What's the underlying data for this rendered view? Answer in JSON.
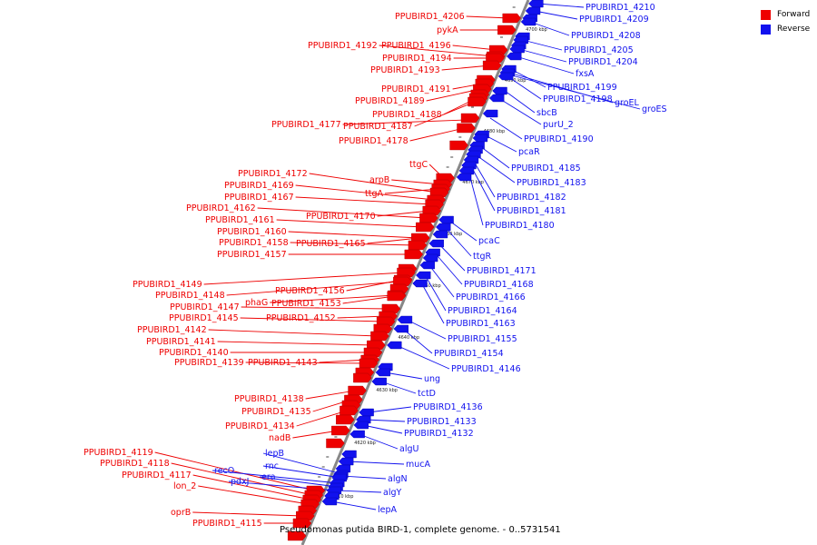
{
  "legend": {
    "forward_label": "Forward",
    "reverse_label": "Reverse",
    "forward_color": "#ee0000",
    "reverse_color": "#1111ee"
  },
  "colors": {
    "axis": "#888888",
    "forward": "#ee0000",
    "reverse": "#1111ee",
    "kbp_text": "#222222"
  },
  "caption": "Pseudomonas putida BIRD-1, complete genome. - 0..5731541",
  "kbp_ticks": [
    "4700 kbp",
    "4690 kbp",
    "4680 kbp",
    "4670 kbp",
    "4660 kbp",
    "4650 kbp",
    "4640 kbp",
    "4630 kbp",
    "4620 kbp",
    "4610 kbp"
  ],
  "forward_labels": [
    "PPUBIRD1_4206",
    "pykA",
    "PPUBIRD1_4192",
    "PPUBIRD1_4196",
    "PPUBIRD1_4194",
    "PPUBIRD1_4193",
    "PPUBIRD1_4191",
    "PPUBIRD1_4189",
    "PPUBIRD1_4188",
    "PPUBIRD1_4177",
    "PPUBIRD1_4187",
    "PPUBIRD1_4178",
    "ttgC",
    "PPUBIRD1_4172",
    "arpB",
    "PPUBIRD1_4169",
    "ttgA",
    "PPUBIRD1_4167",
    "PPUBIRD1_4162",
    "PPUBIRD1_4170",
    "PPUBIRD1_4161",
    "PPUBIRD1_4160",
    "PPUBIRD1_4158",
    "PPUBIRD1_4165",
    "PPUBIRD1_4157",
    "PPUBIRD1_4149",
    "PPUBIRD1_4156",
    "PPUBIRD1_4148",
    "phaG",
    "PPUBIRD1_4153",
    "PPUBIRD1_4147",
    "PPUBIRD1_4145",
    "PPUBIRD1_4152",
    "PPUBIRD1_4142",
    "PPUBIRD1_4141",
    "PPUBIRD1_4140",
    "PPUBIRD1_4143",
    "PPUBIRD1_4139",
    "PPUBIRD1_4138",
    "PPUBIRD1_4135",
    "PPUBIRD1_4134",
    "nadB",
    "PPUBIRD1_4119",
    "PPUBIRD1_4118",
    "PPUBIRD1_4117",
    "lon_2",
    "oprB",
    "PPUBIRD1_4115"
  ],
  "reverse_labels": [
    "PPUBIRD1_4210",
    "PPUBIRD1_4209",
    "PPUBIRD1_4208",
    "PPUBIRD1_4205",
    "PPUBIRD1_4204",
    "fxsA",
    "PPUBIRD1_4199",
    "PPUBIRD1_4198",
    "groEL",
    "groES",
    "sbcB",
    "purU_2",
    "PPUBIRD1_4190",
    "pcaR",
    "PPUBIRD1_4185",
    "PPUBIRD1_4183",
    "PPUBIRD1_4182",
    "PPUBIRD1_4181",
    "PPUBIRD1_4180",
    "pcaC",
    "ttgR",
    "PPUBIRD1_4171",
    "PPUBIRD1_4168",
    "PPUBIRD1_4166",
    "PPUBIRD1_4164",
    "PPUBIRD1_4163",
    "PPUBIRD1_4155",
    "PPUBIRD1_4154",
    "PPUBIRD1_4146",
    "ung",
    "tctD",
    "PPUBIRD1_4136",
    "PPUBIRD1_4133",
    "PPUBIRD1_4132",
    "algU",
    "lepB",
    "mucA",
    "recO",
    "rnc",
    "pdxJ",
    "era",
    "algN",
    "algY",
    "lepA"
  ]
}
